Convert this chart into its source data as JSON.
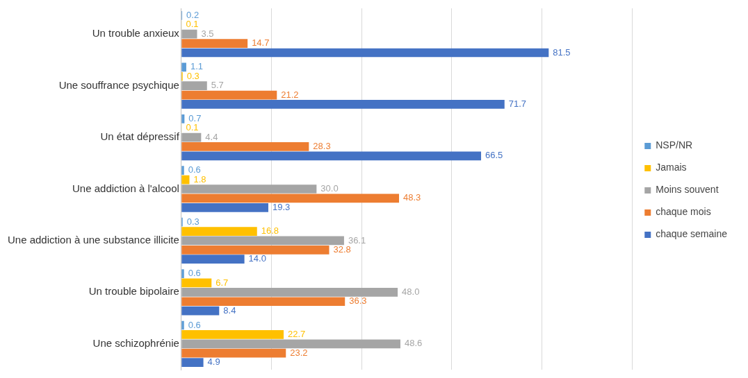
{
  "chart_data": {
    "type": "bar",
    "orientation": "horizontal",
    "categories": [
      "Un trouble anxieux",
      "Une souffrance psychique",
      "Un état dépressif",
      "Une addiction à l'alcool",
      "Une addiction à une substance illicite",
      "Un trouble bipolaire",
      "Une schizophrénie"
    ],
    "series": [
      {
        "name": "NSP/NR",
        "color": "#5b9bd5",
        "values": [
          0.2,
          1.1,
          0.7,
          0.6,
          0.3,
          0.6,
          0.6
        ],
        "value_labels": [
          "0.2",
          "1.1",
          "0.7",
          "0.6",
          "0.3",
          "0.6",
          "0.6"
        ]
      },
      {
        "name": "Jamais",
        "color": "#ffc000",
        "values": [
          0.1,
          0.3,
          0.1,
          1.8,
          16.8,
          6.7,
          22.7
        ],
        "value_labels": [
          "0.1",
          "0.3",
          "0.1",
          "1.8",
          "16.8",
          "6.7",
          "22.7"
        ]
      },
      {
        "name": "Moins souvent",
        "color": "#a5a5a5",
        "values": [
          3.5,
          5.7,
          4.4,
          30,
          36.1,
          48,
          48.6
        ],
        "value_labels": [
          "3.5",
          "5.7",
          "4.4",
          "30.0",
          "36.1",
          "48.0",
          "48.6"
        ]
      },
      {
        "name": "chaque mois",
        "color": "#ed7d31",
        "values": [
          14.7,
          21.2,
          28.3,
          48.3,
          32.8,
          36.3,
          23.2
        ],
        "value_labels": [
          "14.7",
          "21.2",
          "28.3",
          "48.3",
          "32.8",
          "36.3",
          "23.2"
        ]
      },
      {
        "name": "chaque semaine",
        "color": "#4472c4",
        "values": [
          81.5,
          71.7,
          66.5,
          19.3,
          14,
          8.4,
          4.9
        ],
        "value_labels": [
          "81.5",
          "71.7",
          "66.5",
          "19.3",
          "14.0",
          "8.4",
          "4.9"
        ]
      }
    ],
    "xlim": [
      0,
      100
    ],
    "xticks": [
      {
        "value": 0,
        "label": null
      },
      {
        "value": 20,
        "label": null
      },
      {
        "value": 40,
        "label": null
      },
      {
        "value": 60,
        "label": null
      },
      {
        "value": 80,
        "label": null
      },
      {
        "value": 100,
        "label": null
      }
    ],
    "grid": "x",
    "tick_labels": "y",
    "legend": "right"
  }
}
